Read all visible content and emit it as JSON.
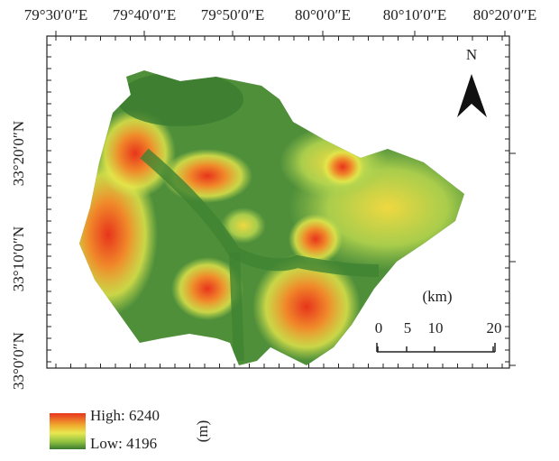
{
  "longitude_labels": [
    "79°30′0″E",
    "79°40′0″E",
    "79°50′0″E",
    "80°0′0″E",
    "80°10′0″E",
    "80°20′0″E"
  ],
  "latitude_labels": [
    "33°20′0″N",
    "33°10′0″N",
    "33°0′0″N"
  ],
  "north_label": "N",
  "scale_bar": {
    "unit": "(km)",
    "labels": [
      0,
      5,
      10,
      20
    ]
  },
  "legend": {
    "high": "High: 6240",
    "low": "Low: 4196",
    "unit": "(m)"
  }
}
